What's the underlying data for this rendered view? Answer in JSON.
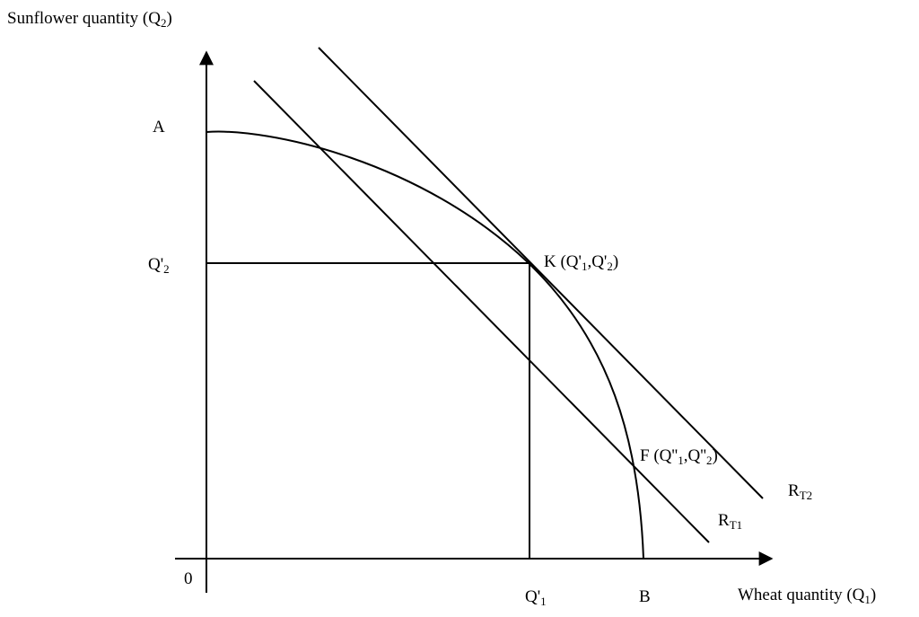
{
  "axes": {
    "y_label": {
      "text": "Sunflower quantity (Q",
      "sub": "2",
      "tail": ")"
    },
    "x_label": {
      "text": "Wheat quantity (Q",
      "sub": "1",
      "tail": ")"
    },
    "origin": "0"
  },
  "points": {
    "A": "A",
    "B": "B",
    "q2_prime": {
      "text": "Q'",
      "sub": "2"
    },
    "q1_prime": {
      "text": "Q'",
      "sub": "1"
    },
    "K": {
      "pre": "K (Q'",
      "s1": "1",
      "mid": ",Q'",
      "s2": "2",
      "post": ")"
    },
    "F": {
      "pre": "F (Q''",
      "s1": "1",
      "mid": ",Q''",
      "s2": "2",
      "post": ")"
    }
  },
  "lines": {
    "RT1": {
      "text": "R",
      "sub": "T1"
    },
    "RT2": {
      "text": "R",
      "sub": "T2"
    }
  },
  "colors": {
    "stroke": "#000000",
    "background": "#ffffff"
  }
}
